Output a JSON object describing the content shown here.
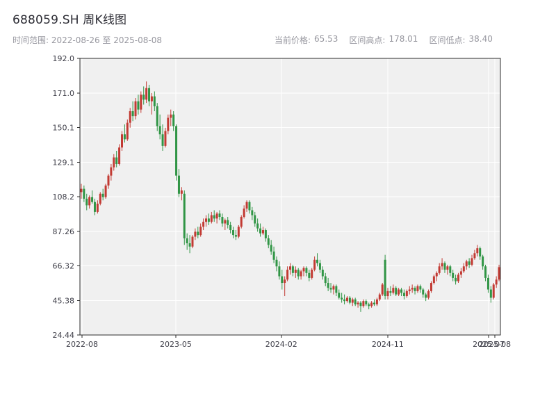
{
  "header": {
    "title": "688059.SH 周K线图",
    "time_range_label": "时间范围:",
    "time_range_value": "2022-08-26 至 2025-08-08",
    "stats": [
      {
        "label": "当前价格:",
        "value": "65.53"
      },
      {
        "label": "区间高点:",
        "value": "178.01"
      },
      {
        "label": "区间低点:",
        "value": "38.40"
      }
    ]
  },
  "chart_data": {
    "type": "candlestick",
    "title": "688059.SH 周K线图",
    "symbol": "688059.SH",
    "frequency": "weekly",
    "start_date": "2022-08-26",
    "end_date": "2025-08-08",
    "current_price": 65.53,
    "range_high": 178.01,
    "range_low": 38.4,
    "ylim": [
      24.44,
      192.0
    ],
    "grid": true,
    "legend_position": "none",
    "xlabel": "",
    "ylabel": "",
    "y_ticks": [
      {
        "value": 192.0,
        "label": "192.0"
      },
      {
        "value": 171.0,
        "label": "171.0"
      },
      {
        "value": 150.1,
        "label": "150.1"
      },
      {
        "value": 129.1,
        "label": "129.1"
      },
      {
        "value": 108.2,
        "label": "108.2"
      },
      {
        "value": 87.26,
        "label": "87.26"
      },
      {
        "value": 66.32,
        "label": "66.32"
      },
      {
        "value": 45.38,
        "label": "45.38"
      },
      {
        "value": 24.44,
        "label": "24.44"
      }
    ],
    "x_ticks": [
      {
        "label": "2022-08",
        "pos": 0.005
      },
      {
        "label": "2023-05",
        "pos": 0.228
      },
      {
        "label": "2024-02",
        "pos": 0.479
      },
      {
        "label": "2024-11",
        "pos": 0.732
      },
      {
        "label": "2025-07",
        "pos": 0.972
      },
      {
        "label": "2025-08",
        "pos": 0.987
      }
    ],
    "colors": {
      "up": "#c23a33",
      "down": "#309545",
      "plot_bg": "#f0f0f0",
      "grid": "#ffffff",
      "axis": "#2b2b2b",
      "tick_text": "#3d3d47"
    },
    "candles_format": [
      "open",
      "high",
      "low",
      "close"
    ],
    "candles": [
      [
        111,
        116,
        107,
        113
      ],
      [
        113,
        115,
        105,
        107
      ],
      [
        107,
        110,
        100,
        103
      ],
      [
        103,
        109,
        101,
        108
      ],
      [
        108,
        112,
        104,
        105
      ],
      [
        105,
        107,
        97,
        99
      ],
      [
        99,
        106,
        98,
        104
      ],
      [
        104,
        111,
        103,
        110
      ],
      [
        110,
        113,
        106,
        108
      ],
      [
        108,
        116,
        107,
        115
      ],
      [
        115,
        122,
        113,
        121
      ],
      [
        121,
        128,
        118,
        126
      ],
      [
        126,
        134,
        124,
        132
      ],
      [
        132,
        136,
        126,
        128
      ],
      [
        128,
        140,
        127,
        138
      ],
      [
        138,
        148,
        136,
        146
      ],
      [
        146,
        152,
        141,
        143
      ],
      [
        143,
        155,
        142,
        153
      ],
      [
        153,
        162,
        150,
        160
      ],
      [
        160,
        166,
        154,
        157
      ],
      [
        157,
        168,
        155,
        166
      ],
      [
        166,
        170,
        158,
        161
      ],
      [
        161,
        172,
        159,
        170
      ],
      [
        170,
        175,
        164,
        167
      ],
      [
        167,
        178.01,
        165,
        174
      ],
      [
        174,
        176,
        163,
        166
      ],
      [
        166,
        171,
        158,
        169
      ],
      [
        169,
        172,
        160,
        163
      ],
      [
        163,
        165,
        148,
        151
      ],
      [
        151,
        158,
        143,
        146
      ],
      [
        146,
        152,
        136,
        139
      ],
      [
        139,
        150,
        138,
        148
      ],
      [
        148,
        158,
        146,
        156
      ],
      [
        156,
        161,
        151,
        158
      ],
      [
        158,
        160,
        148,
        151
      ],
      [
        151,
        152,
        118,
        121
      ],
      [
        121,
        125,
        108,
        110
      ],
      [
        110,
        114,
        106,
        112
      ],
      [
        110,
        112,
        79,
        83
      ],
      [
        83,
        86,
        76,
        80
      ],
      [
        80,
        85,
        74,
        78
      ],
      [
        78,
        85,
        77,
        84
      ],
      [
        84,
        89,
        82,
        87
      ],
      [
        87,
        90,
        83,
        85
      ],
      [
        85,
        92,
        84,
        90
      ],
      [
        90,
        95,
        88,
        93
      ],
      [
        93,
        97,
        90,
        95
      ],
      [
        95,
        98,
        91,
        93
      ],
      [
        93,
        99,
        92,
        97
      ],
      [
        97,
        100,
        93,
        95
      ],
      [
        95,
        99,
        92,
        98
      ],
      [
        98,
        100,
        94,
        96
      ],
      [
        96,
        98,
        90,
        92
      ],
      [
        92,
        95,
        88,
        94
      ],
      [
        94,
        96,
        89,
        91
      ],
      [
        91,
        93,
        86,
        88
      ],
      [
        88,
        90,
        83,
        85
      ],
      [
        85,
        88,
        82,
        84
      ],
      [
        84,
        91,
        83,
        90
      ],
      [
        90,
        97,
        89,
        96
      ],
      [
        96,
        103,
        95,
        101
      ],
      [
        101,
        106,
        99,
        105
      ],
      [
        105,
        106,
        98,
        100
      ],
      [
        100,
        102,
        94,
        97
      ],
      [
        97,
        99,
        90,
        92
      ],
      [
        92,
        95,
        87,
        89
      ],
      [
        89,
        92,
        84,
        86
      ],
      [
        86,
        90,
        85,
        88
      ],
      [
        88,
        89,
        81,
        83
      ],
      [
        83,
        85,
        77,
        79
      ],
      [
        79,
        82,
        73,
        75
      ],
      [
        75,
        78,
        68,
        70
      ],
      [
        70,
        72,
        63,
        66
      ],
      [
        66,
        69,
        58,
        60
      ],
      [
        60,
        64,
        52,
        56
      ],
      [
        56,
        60,
        48,
        58
      ],
      [
        58,
        66,
        57,
        64
      ],
      [
        64,
        68,
        61,
        66
      ],
      [
        66,
        67,
        60,
        62
      ],
      [
        62,
        66,
        59,
        64
      ],
      [
        64,
        65,
        58,
        60
      ],
      [
        60,
        64,
        58,
        63
      ],
      [
        63,
        66,
        60,
        65
      ],
      [
        65,
        66,
        60,
        62
      ],
      [
        62,
        64,
        57,
        59
      ],
      [
        59,
        65,
        58,
        64
      ],
      [
        64,
        72,
        63,
        70
      ],
      [
        70,
        74,
        66,
        68
      ],
      [
        68,
        70,
        62,
        64
      ],
      [
        64,
        66,
        58,
        60
      ],
      [
        60,
        62,
        54,
        56
      ],
      [
        56,
        59,
        51,
        53
      ],
      [
        53,
        56,
        50,
        52
      ],
      [
        52,
        55,
        49,
        54
      ],
      [
        54,
        55,
        48,
        50
      ],
      [
        50,
        52,
        46,
        47
      ],
      [
        47,
        50,
        44,
        46
      ],
      [
        46,
        49,
        43,
        45
      ],
      [
        45,
        48,
        44,
        47
      ],
      [
        47,
        48,
        43,
        44
      ],
      [
        44,
        47,
        42,
        46
      ],
      [
        46,
        47,
        42,
        43
      ],
      [
        43,
        45,
        41,
        44
      ],
      [
        44,
        45,
        38.4,
        42
      ],
      [
        42,
        46,
        41,
        45
      ],
      [
        45,
        46,
        42,
        43
      ],
      [
        43,
        44,
        40,
        42
      ],
      [
        42,
        45,
        41,
        44
      ],
      [
        44,
        46,
        42,
        43
      ],
      [
        43,
        47,
        42,
        46
      ],
      [
        46,
        50,
        45,
        49
      ],
      [
        49,
        56,
        48,
        55
      ],
      [
        70,
        73,
        46,
        48
      ],
      [
        48,
        53,
        46,
        51
      ],
      [
        51,
        54,
        48,
        50
      ],
      [
        50,
        55,
        49,
        53
      ],
      [
        53,
        54,
        48,
        49
      ],
      [
        49,
        53,
        48,
        52
      ],
      [
        52,
        53,
        48,
        50
      ],
      [
        50,
        52,
        46,
        48
      ],
      [
        48,
        52,
        47,
        51
      ],
      [
        51,
        54,
        49,
        52
      ],
      [
        52,
        55,
        50,
        53
      ],
      [
        53,
        54,
        49,
        51
      ],
      [
        51,
        55,
        50,
        54
      ],
      [
        54,
        55,
        50,
        52
      ],
      [
        52,
        53,
        47,
        49
      ],
      [
        49,
        50,
        45,
        47
      ],
      [
        47,
        52,
        46,
        51
      ],
      [
        51,
        57,
        50,
        56
      ],
      [
        56,
        61,
        55,
        60
      ],
      [
        60,
        63,
        57,
        62
      ],
      [
        62,
        68,
        61,
        66
      ],
      [
        66,
        71,
        64,
        68
      ],
      [
        68,
        69,
        62,
        64
      ],
      [
        64,
        67,
        61,
        66
      ],
      [
        66,
        67,
        60,
        62
      ],
      [
        62,
        64,
        57,
        59
      ],
      [
        59,
        61,
        55,
        57
      ],
      [
        57,
        62,
        56,
        61
      ],
      [
        61,
        65,
        59,
        63
      ],
      [
        63,
        68,
        62,
        66
      ],
      [
        66,
        70,
        64,
        69
      ],
      [
        69,
        71,
        65,
        67
      ],
      [
        67,
        73,
        66,
        71
      ],
      [
        71,
        76,
        70,
        74
      ],
      [
        74,
        79,
        72,
        77
      ],
      [
        77,
        78,
        70,
        72
      ],
      [
        72,
        73,
        64,
        66
      ],
      [
        66,
        67,
        57,
        59
      ],
      [
        59,
        61,
        50,
        52
      ],
      [
        52,
        54,
        44,
        47
      ],
      [
        47,
        56,
        46,
        55
      ],
      [
        55,
        60,
        53,
        58
      ],
      [
        58,
        67,
        57,
        65.53
      ]
    ]
  }
}
